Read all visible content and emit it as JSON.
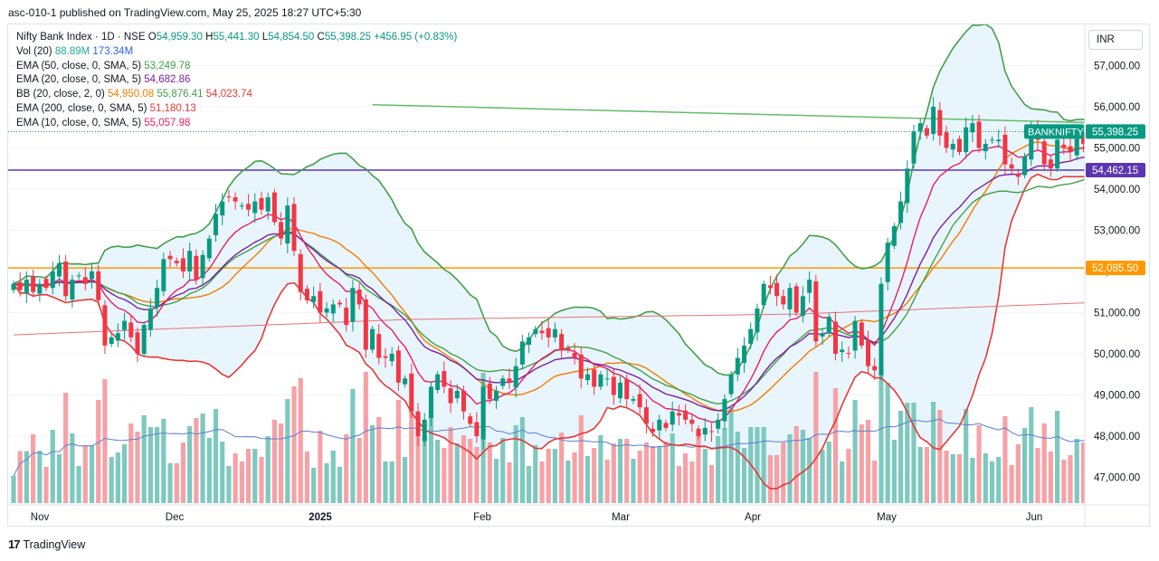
{
  "header": {
    "published": "asc-010-1 published on TradingView.com, May 25, 2025 18:27 UTC+5:30"
  },
  "legend": {
    "symbol": "Nifty Bank Index · 1D · NSE",
    "o_label": "O",
    "o": "54,959.30",
    "h_label": "H",
    "h": "55,441.30",
    "l_label": "L",
    "l": "54,854.50",
    "c_label": "C",
    "c": "55,398.25",
    "change": "+456.95 (+0.83%)",
    "vol_label": "Vol (20)",
    "vol_val1": "88.89M",
    "vol_val2": "173.34M",
    "ema50_label": "EMA (50, close, 0, SMA, 5)",
    "ema50_val": "53,249.78",
    "ema20_label": "EMA (20, close, 0, SMA, 5)",
    "ema20_val": "54,682.86",
    "bb_label": "BB (20, close, 2, 0)",
    "bb_mid": "54,950.08",
    "bb_up": "55,876.41",
    "bb_low": "54,023.74",
    "ema200_label": "EMA (200, close, 0, SMA, 5)",
    "ema200_val": "51,180.13",
    "ema10_label": "EMA (10, close, 0, SMA, 5)",
    "ema10_val": "55,057.98"
  },
  "currency_button": "INR",
  "footer": {
    "logo": "17",
    "brand": "TradingView"
  },
  "colors": {
    "up": "#089981",
    "down": "#f23645",
    "vol_up": "#7ec9bf",
    "vol_down": "#f5a2a7",
    "ema50": "#43a047",
    "ema20": "#7b1fa2",
    "ema10": "#e91e63",
    "ema200": "#e57373",
    "bb_basis": "#f57c00",
    "bb_band": "#43a047",
    "bb_lower": "#e53935",
    "bb_fill": "#e3f2fd",
    "hline_purple": "#5e35b1",
    "hline_orange": "#ff9800",
    "trendline": "#66bb6a",
    "vol_ma": "#5b7fd1"
  },
  "chart_data": {
    "type": "candlestick",
    "symbol": "BANKNIFTY",
    "timeframe": "1D",
    "y_axis": {
      "range": [
        46200,
        57900
      ],
      "ticks": [
        47000,
        48000,
        49000,
        50000,
        51000,
        52000,
        53000,
        54000,
        55000,
        56000,
        57000
      ],
      "tick_labels": [
        "47,000.00",
        "48,000.00",
        "49,000.00",
        "50,000.00",
        "51,000.00",
        "52,000.00",
        "53,000.00",
        "54,000.00",
        "55,000.00",
        "56,000.00",
        "57,000.00"
      ]
    },
    "x_axis": {
      "labels": [
        "Nov",
        "Dec",
        "2025",
        "Feb",
        "Mar",
        "Apr",
        "May",
        "Jun"
      ]
    },
    "price_tags": [
      {
        "label": "BANKNIFTY",
        "value": "55,398.25",
        "price": 55398.25,
        "color": "#089981"
      },
      {
        "value": "54,462.15",
        "price": 54462.15,
        "color": "#5e35b1"
      },
      {
        "value": "52,085.50",
        "price": 52085.5,
        "color": "#ff9800"
      }
    ],
    "horizontal_lines": [
      {
        "price": 54462.15,
        "color": "#5e35b1"
      },
      {
        "price": 52085.5,
        "color": "#ff9800"
      }
    ],
    "trendline": {
      "points": [
        [
          55,
          56050
        ],
        [
          169,
          55600
        ]
      ]
    },
    "closes": [
      51700,
      51550,
      51800,
      51500,
      51700,
      51600,
      52000,
      52200,
      51400,
      51800,
      51900,
      51700,
      52000,
      51300,
      50200,
      50400,
      50500,
      50800,
      50400,
      50000,
      50700,
      51100,
      51600,
      52300,
      52300,
      52200,
      52000,
      52500,
      51800,
      52400,
      52800,
      53400,
      53700,
      53800,
      53700,
      53600,
      53500,
      53700,
      53500,
      53800,
      53200,
      52800,
      53600,
      52500,
      51500,
      51300,
      51400,
      51000,
      51100,
      51200,
      51200,
      50700,
      51600,
      51200,
      50100,
      50600,
      49900,
      49900,
      50000,
      49300,
      49400,
      48600,
      48000,
      48400,
      49200,
      49500,
      49200,
      48800,
      49100,
      48600,
      48300,
      48000,
      49200,
      48900,
      49100,
      49400,
      49300,
      49700,
      50300,
      50400,
      50600,
      50500,
      50400,
      50600,
      50100,
      50100,
      49900,
      49400,
      49500,
      49200,
      49500,
      49400,
      49000,
      49300,
      48900,
      48900,
      48700,
      48300,
      48100,
      48400,
      48200,
      48600,
      48500,
      48400,
      48300,
      48000,
      48200,
      48100,
      48400,
      48900,
      49500,
      49900,
      50200,
      50600,
      51100,
      51700,
      51600,
      51400,
      51200,
      51600,
      51000,
      51400,
      51800,
      50300,
      50500,
      50900,
      50000,
      50100,
      50000,
      50800,
      50200,
      49700,
      49600,
      51700,
      52700,
      53100,
      53700,
      54500,
      55400,
      55600,
      55300,
      56000,
      55300,
      55000,
      55100,
      54900,
      55500,
      55600,
      55000,
      55100,
      55200,
      55200,
      54600,
      54500,
      54300,
      54800,
      55400,
      55200,
      54600,
      54500,
      55200,
      55000,
      54900,
      55300,
      55100,
      55200,
      55400,
      55300,
      55000,
      54800,
      55200,
      54900,
      55398
    ]
  }
}
